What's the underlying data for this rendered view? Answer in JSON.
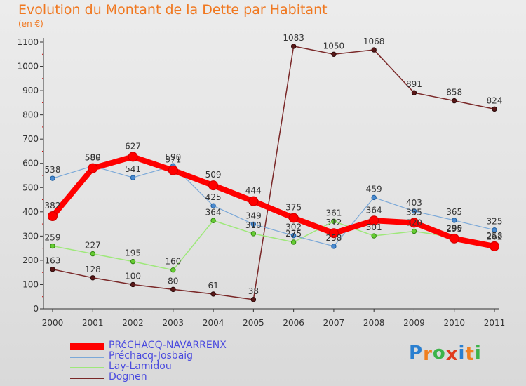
{
  "header": {
    "title": "Evolution du Montant de la Dette par Habitant",
    "unit": "(en €)"
  },
  "brand": {
    "letters": [
      "P",
      "r",
      "o",
      "x",
      "i",
      "t",
      "i"
    ],
    "colors": [
      "#2a7fd0",
      "#f08020",
      "#3cb34a",
      "#e03a1e",
      "#2a7fd0",
      "#f08020",
      "#3cb34a"
    ]
  },
  "chart_data": {
    "type": "line",
    "title": "Evolution du Montant de la Dette par Habitant",
    "ylabel": "(en €)",
    "xlabel": "",
    "x": [
      "2000",
      "2001",
      "2002",
      "2003",
      "2004",
      "2005",
      "2006",
      "2007",
      "2008",
      "2009",
      "2010",
      "2011"
    ],
    "ylim": [
      0,
      1100
    ],
    "yticks": [
      0,
      100,
      200,
      300,
      400,
      500,
      600,
      700,
      800,
      900,
      1000,
      1100
    ],
    "grid": false,
    "legend": "bottom-left",
    "series": [
      {
        "name": "Dognen",
        "color": "#7a2828",
        "values": [
          163,
          128,
          100,
          80,
          61,
          38,
          1083,
          1050,
          1068,
          891,
          858,
          824
        ],
        "labels": [
          "163",
          "128",
          "100",
          "80",
          "61",
          "38",
          "1083",
          "1050",
          "1068",
          "891",
          "858",
          "824"
        ]
      },
      {
        "name": "Lay-Lamidou",
        "color": "#9ee87a",
        "values": [
          259,
          227,
          195,
          160,
          364,
          310,
          275,
          361,
          301,
          320,
          295,
          262
        ],
        "labels": [
          "259",
          "227",
          "195",
          "160",
          "364",
          "310",
          "275",
          "361",
          "301",
          "320",
          "295",
          "262"
        ]
      },
      {
        "name": "Préchacq-Josbaig",
        "color": "#7aa8d8",
        "values": [
          538,
          589,
          541,
          590,
          425,
          349,
          302,
          258,
          459,
          403,
          365,
          325
        ],
        "labels": [
          "538",
          "589",
          "541",
          "590",
          "425",
          "349",
          "302",
          "258",
          "459",
          "403",
          "365",
          "325"
        ]
      },
      {
        "name": "PRéCHACQ-NAVARRENX",
        "color": "#ff0000",
        "values": [
          382,
          580,
          627,
          571,
          509,
          444,
          375,
          312,
          364,
          355,
          290,
          258
        ],
        "labels": [
          "382",
          "580",
          "627",
          "571",
          "509",
          "444",
          "375",
          "312",
          "364",
          "355",
          "290",
          "258"
        ]
      }
    ]
  }
}
